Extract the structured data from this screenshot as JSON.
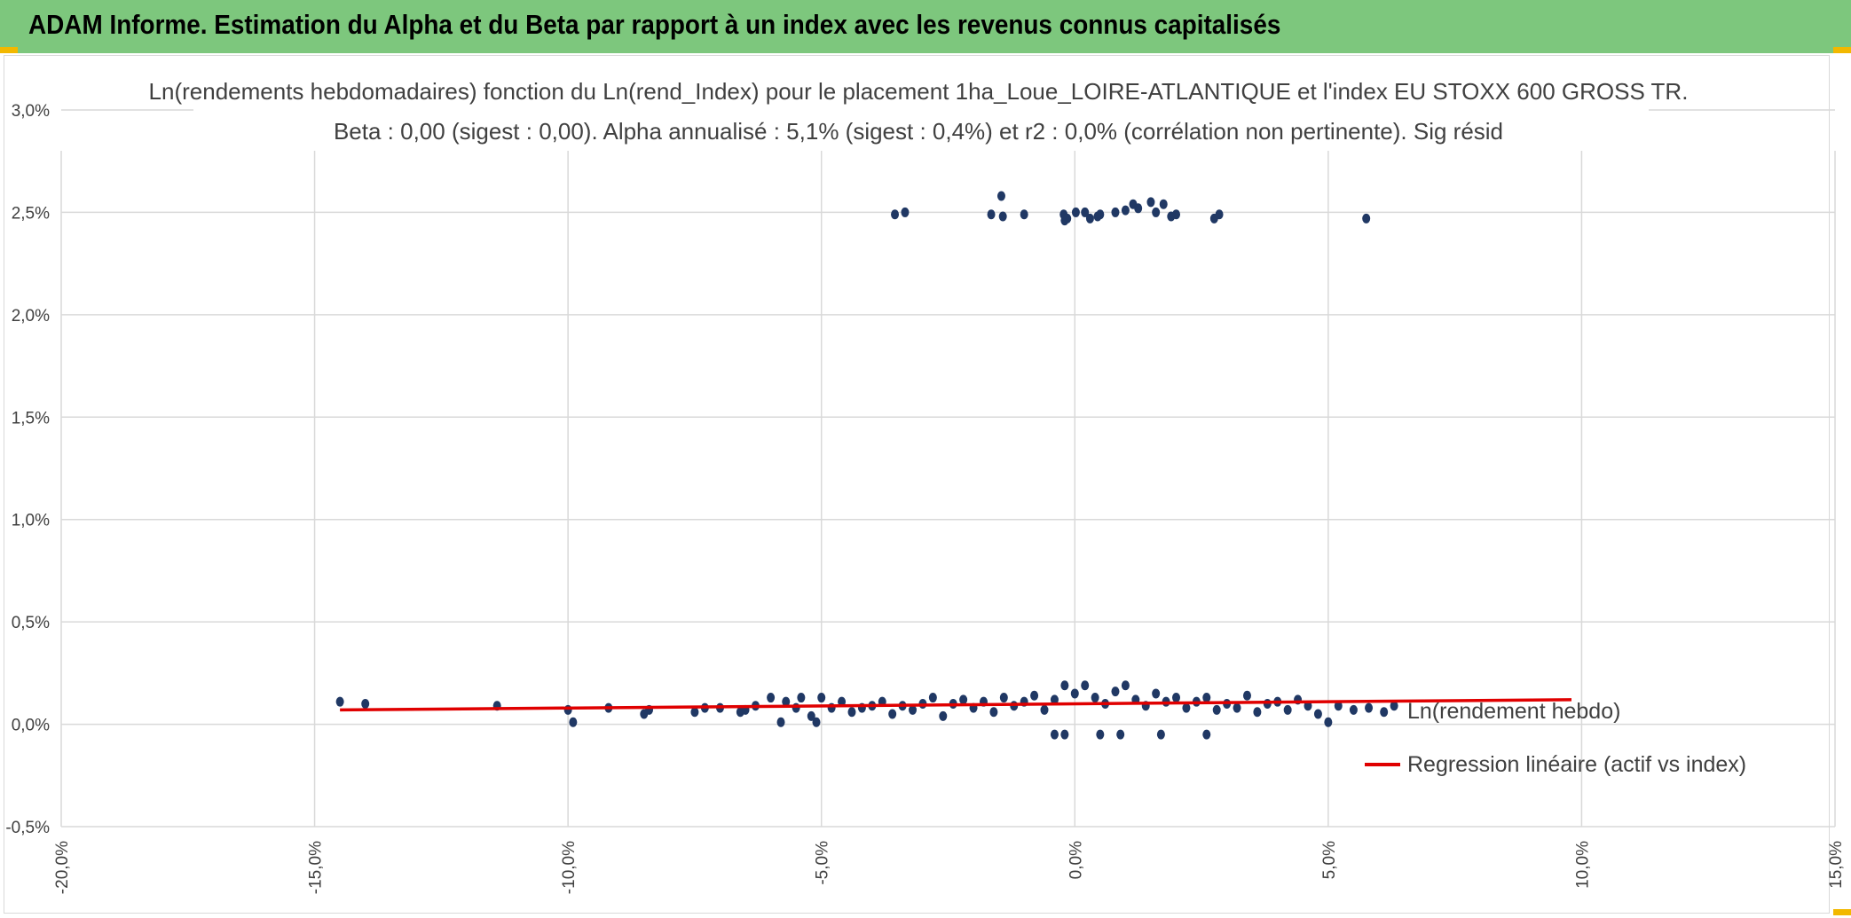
{
  "header": {
    "title": "ADAM Informe. Estimation du Alpha et du Beta par rapport à un index avec les revenus connus capitalisés"
  },
  "colors": {
    "header_bg": "#7dc77d",
    "points": "#203864",
    "regression": "#e00000",
    "grid": "#d9d9d9",
    "corner_marks": "#f2b800"
  },
  "chart_data": {
    "type": "scatter",
    "title_line1": "Ln(rendements hebdomadaires) fonction du Ln(rend_Index) pour le placement 1ha_Loue_LOIRE-ATLANTIQUE et l'index EU STOXX 600 GROSS TR.",
    "title_line2": "Beta : 0,00 (sigest : 0,00). Alpha annualisé : 5,1% (sigest : 0,4%) et r2 : 0,0% (corrélation non pertinente). Sig résid",
    "xlabel": "",
    "ylabel": "",
    "xlim": [
      -0.2,
      0.15
    ],
    "ylim": [
      -0.005,
      0.03
    ],
    "x_ticks": [
      "-20,0%",
      "-15,0%",
      "-10,0%",
      "-5,0%",
      "0,0%",
      "5,0%",
      "10,0%",
      "15,0%"
    ],
    "y_ticks": [
      "3,0%",
      "2,5%",
      "2,0%",
      "1,5%",
      "1,0%",
      "0,5%",
      "0,0%",
      "-0,5%"
    ],
    "grid": true,
    "legend_position": "right",
    "series": [
      {
        "name": "Ln(rendement hebdo)",
        "type": "scatter",
        "points": [
          [
            -0.0355,
            0.0249
          ],
          [
            -0.0335,
            0.025
          ],
          [
            -0.0165,
            0.0249
          ],
          [
            -0.0145,
            0.0258
          ],
          [
            -0.0142,
            0.0248
          ],
          [
            -0.01,
            0.0249
          ],
          [
            -0.0022,
            0.0249
          ],
          [
            -0.002,
            0.0246
          ],
          [
            -0.0015,
            0.0247
          ],
          [
            0.0002,
            0.025
          ],
          [
            0.002,
            0.025
          ],
          [
            0.003,
            0.0247
          ],
          [
            0.0045,
            0.0248
          ],
          [
            0.005,
            0.0249
          ],
          [
            0.008,
            0.025
          ],
          [
            0.01,
            0.0251
          ],
          [
            0.0115,
            0.0254
          ],
          [
            0.0125,
            0.0252
          ],
          [
            0.015,
            0.0255
          ],
          [
            0.016,
            0.025
          ],
          [
            0.0175,
            0.0254
          ],
          [
            0.019,
            0.0248
          ],
          [
            0.02,
            0.0249
          ],
          [
            0.0275,
            0.0247
          ],
          [
            0.0285,
            0.0249
          ],
          [
            0.0575,
            0.0247
          ],
          [
            -0.145,
            0.0011
          ],
          [
            -0.14,
            0.001
          ],
          [
            -0.114,
            0.0009
          ],
          [
            -0.1,
            0.0007
          ],
          [
            -0.099,
            0.0001
          ],
          [
            -0.092,
            0.0008
          ],
          [
            -0.085,
            0.0005
          ],
          [
            -0.084,
            0.0007
          ],
          [
            -0.075,
            0.0006
          ],
          [
            -0.073,
            0.0008
          ],
          [
            -0.07,
            0.0008
          ],
          [
            -0.066,
            0.0006
          ],
          [
            -0.065,
            0.0007
          ],
          [
            -0.063,
            0.0009
          ],
          [
            -0.06,
            0.0013
          ],
          [
            -0.058,
            0.0001
          ],
          [
            -0.057,
            0.0011
          ],
          [
            -0.055,
            0.0008
          ],
          [
            -0.054,
            0.0013
          ],
          [
            -0.052,
            0.0004
          ],
          [
            -0.051,
            0.0001
          ],
          [
            -0.05,
            0.0013
          ],
          [
            -0.048,
            0.0008
          ],
          [
            -0.046,
            0.0011
          ],
          [
            -0.044,
            0.0006
          ],
          [
            -0.042,
            0.0008
          ],
          [
            -0.04,
            0.0009
          ],
          [
            -0.038,
            0.0011
          ],
          [
            -0.036,
            0.0005
          ],
          [
            -0.034,
            0.0009
          ],
          [
            -0.032,
            0.0007
          ],
          [
            -0.03,
            0.001
          ],
          [
            -0.028,
            0.0013
          ],
          [
            -0.026,
            0.0004
          ],
          [
            -0.024,
            0.001
          ],
          [
            -0.022,
            0.0012
          ],
          [
            -0.02,
            0.0008
          ],
          [
            -0.018,
            0.0011
          ],
          [
            -0.016,
            0.0006
          ],
          [
            -0.014,
            0.0013
          ],
          [
            -0.012,
            0.0009
          ],
          [
            -0.01,
            0.0011
          ],
          [
            -0.008,
            0.0014
          ],
          [
            -0.006,
            0.0007
          ],
          [
            -0.004,
            0.0012
          ],
          [
            -0.002,
            0.0019
          ],
          [
            0.0,
            0.0015
          ],
          [
            0.002,
            0.0019
          ],
          [
            0.004,
            0.0013
          ],
          [
            0.006,
            0.001
          ],
          [
            0.008,
            0.0016
          ],
          [
            0.01,
            0.0019
          ],
          [
            0.012,
            0.0012
          ],
          [
            0.014,
            0.0009
          ],
          [
            0.016,
            0.0015
          ],
          [
            0.018,
            0.0011
          ],
          [
            0.02,
            0.0013
          ],
          [
            0.022,
            0.0008
          ],
          [
            0.024,
            0.0011
          ],
          [
            0.026,
            0.0013
          ],
          [
            0.028,
            0.0007
          ],
          [
            0.03,
            0.001
          ],
          [
            0.032,
            0.0008
          ],
          [
            0.034,
            0.0014
          ],
          [
            0.036,
            0.0006
          ],
          [
            0.038,
            0.001
          ],
          [
            0.04,
            0.0011
          ],
          [
            0.042,
            0.0007
          ],
          [
            0.044,
            0.0012
          ],
          [
            0.046,
            0.0009
          ],
          [
            0.048,
            0.0005
          ],
          [
            0.05,
            0.0001
          ],
          [
            0.052,
            0.0009
          ],
          [
            0.055,
            0.0007
          ],
          [
            0.058,
            0.0008
          ],
          [
            0.061,
            0.0006
          ],
          [
            0.063,
            0.0009
          ],
          [
            -0.004,
            -0.0005
          ],
          [
            -0.002,
            -0.0005
          ],
          [
            0.005,
            -0.0005
          ],
          [
            0.009,
            -0.0005
          ],
          [
            0.017,
            -0.0005
          ],
          [
            0.026,
            -0.0005
          ]
        ]
      },
      {
        "name": "Regression linéaire (actif vs index)",
        "type": "line",
        "points": [
          [
            -0.145,
            0.0007
          ],
          [
            0.098,
            0.0012
          ]
        ]
      }
    ]
  }
}
